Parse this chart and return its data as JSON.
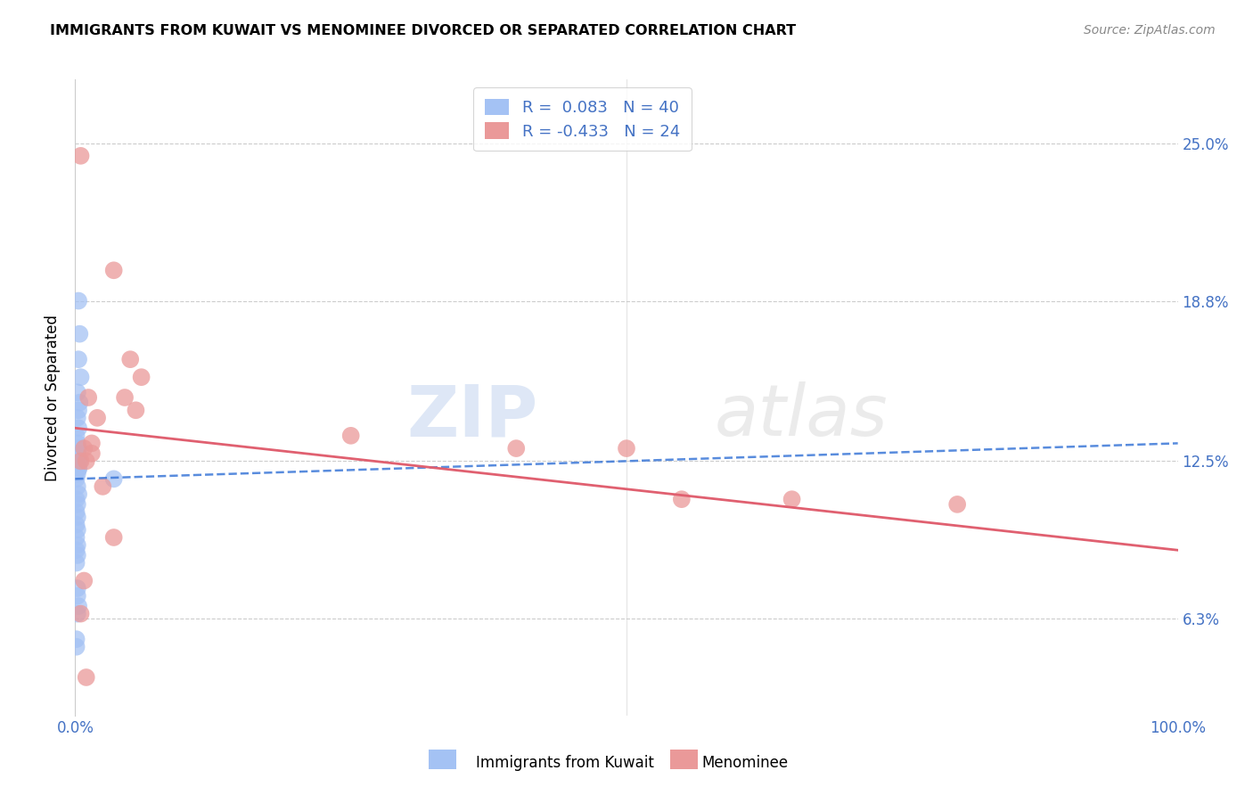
{
  "title": "IMMIGRANTS FROM KUWAIT VS MENOMINEE DIVORCED OR SEPARATED CORRELATION CHART",
  "source_text": "Source: ZipAtlas.com",
  "ylabel": "Divorced or Separated",
  "xlim": [
    0.0,
    100.0
  ],
  "ylim": [
    2.5,
    27.5
  ],
  "yticks": [
    6.3,
    12.5,
    18.8,
    25.0
  ],
  "ytick_labels": [
    "6.3%",
    "12.5%",
    "18.8%",
    "25.0%"
  ],
  "legend_blue_label": "R =  0.083   N = 40",
  "legend_pink_label": "R = -0.433   N = 24",
  "blue_color": "#a4c2f4",
  "pink_color": "#ea9999",
  "blue_line_color": "#3c78d8",
  "pink_line_color": "#e06070",
  "tick_color": "#4472c4",
  "watermark_zip": "ZIP",
  "watermark_atlas": "atlas",
  "blue_line_y0": 11.8,
  "blue_line_y1": 13.2,
  "pink_line_y0": 13.8,
  "pink_line_y1": 9.0,
  "blue_x": [
    0.3,
    0.4,
    0.3,
    0.5,
    0.2,
    0.4,
    0.3,
    0.2,
    0.3,
    0.1,
    0.2,
    0.3,
    0.2,
    0.4,
    0.1,
    0.2,
    0.3,
    0.2,
    0.1,
    0.2,
    0.3,
    0.1,
    0.2,
    0.1,
    0.2,
    0.1,
    0.2,
    0.1,
    0.2,
    0.1,
    0.2,
    0.1,
    0.3,
    3.5,
    0.2,
    0.1,
    0.2,
    0.3,
    0.2,
    0.1
  ],
  "blue_y": [
    18.8,
    17.5,
    16.5,
    15.8,
    15.2,
    14.8,
    14.5,
    14.2,
    13.8,
    13.5,
    13.2,
    13.0,
    12.8,
    12.5,
    12.5,
    12.3,
    12.2,
    12.0,
    11.8,
    11.5,
    11.2,
    11.0,
    10.8,
    10.5,
    10.3,
    10.0,
    9.8,
    9.5,
    9.2,
    9.0,
    8.8,
    8.5,
    12.2,
    11.8,
    7.5,
    5.5,
    7.2,
    6.8,
    6.5,
    5.2
  ],
  "pink_x": [
    0.5,
    3.5,
    5.0,
    6.0,
    5.5,
    1.2,
    2.0,
    1.5,
    0.8,
    1.0,
    0.5,
    1.5,
    40.0,
    50.0,
    55.0,
    65.0,
    3.5,
    0.5,
    25.0,
    80.0,
    0.8,
    1.0,
    2.5,
    4.5
  ],
  "pink_y": [
    24.5,
    20.0,
    16.5,
    15.8,
    14.5,
    15.0,
    14.2,
    13.2,
    13.0,
    12.5,
    12.5,
    12.8,
    13.0,
    13.0,
    11.0,
    11.0,
    9.5,
    6.5,
    13.5,
    10.8,
    7.8,
    4.0,
    11.5,
    15.0
  ]
}
